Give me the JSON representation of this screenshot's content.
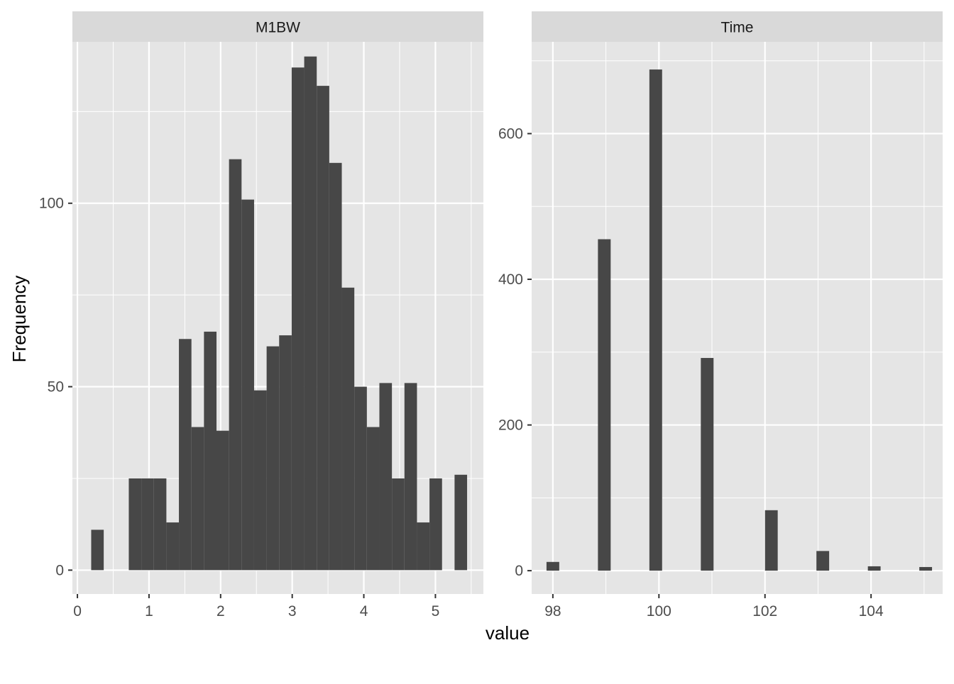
{
  "chart_data": {
    "type": "bar",
    "ylabel": "Frequency",
    "xlabel": "value",
    "colors": {
      "bar": "#474747",
      "panel_bg": "#e5e5e5",
      "strip_bg": "#d9d9d9",
      "grid": "#ffffff",
      "text": "#4d4d4d"
    },
    "grid": true,
    "panels": [
      {
        "strip": "M1BW",
        "xlim": [
          -0.07,
          5.67
        ],
        "ylim": [
          -6.5,
          144
        ],
        "xticks": [
          0,
          1,
          2,
          3,
          4,
          5
        ],
        "xtick_labels": [
          "0",
          "1",
          "2",
          "3",
          "4",
          "5"
        ],
        "yticks": [
          0,
          50,
          100
        ],
        "ytick_labels": [
          "0",
          "50",
          "100"
        ],
        "bin_width": 0.175,
        "bins": [
          {
            "x": 0.28,
            "count": 11
          },
          {
            "x": 0.455,
            "count": 0
          },
          {
            "x": 0.63,
            "count": 0
          },
          {
            "x": 0.805,
            "count": 25
          },
          {
            "x": 0.98,
            "count": 25
          },
          {
            "x": 1.155,
            "count": 25
          },
          {
            "x": 1.33,
            "count": 13
          },
          {
            "x": 1.505,
            "count": 63
          },
          {
            "x": 1.68,
            "count": 39
          },
          {
            "x": 1.855,
            "count": 65
          },
          {
            "x": 2.03,
            "count": 38
          },
          {
            "x": 2.205,
            "count": 112
          },
          {
            "x": 2.38,
            "count": 101
          },
          {
            "x": 2.555,
            "count": 49
          },
          {
            "x": 2.73,
            "count": 61
          },
          {
            "x": 2.905,
            "count": 64
          },
          {
            "x": 3.08,
            "count": 137
          },
          {
            "x": 3.255,
            "count": 140
          },
          {
            "x": 3.43,
            "count": 132
          },
          {
            "x": 3.605,
            "count": 111
          },
          {
            "x": 3.78,
            "count": 77
          },
          {
            "x": 3.955,
            "count": 50
          },
          {
            "x": 4.13,
            "count": 39
          },
          {
            "x": 4.305,
            "count": 51
          },
          {
            "x": 4.48,
            "count": 25
          },
          {
            "x": 4.655,
            "count": 51
          },
          {
            "x": 4.83,
            "count": 13
          },
          {
            "x": 5.005,
            "count": 25
          },
          {
            "x": 5.18,
            "count": 0
          },
          {
            "x": 5.355,
            "count": 26
          }
        ]
      },
      {
        "strip": "Time",
        "xlim": [
          97.6,
          105.35
        ],
        "ylim": [
          -32,
          726
        ],
        "xticks": [
          98,
          100,
          102,
          104
        ],
        "xtick_labels": [
          "98",
          "100",
          "102",
          "104"
        ],
        "yticks": [
          0,
          200,
          400,
          600
        ],
        "ytick_labels": [
          "0",
          "200",
          "400",
          "600"
        ],
        "bin_width": 0.24,
        "bins": [
          {
            "x": 98.0,
            "count": 12
          },
          {
            "x": 98.97,
            "count": 455
          },
          {
            "x": 99.94,
            "count": 688
          },
          {
            "x": 100.91,
            "count": 292
          },
          {
            "x": 102.12,
            "count": 83
          },
          {
            "x": 103.09,
            "count": 27
          },
          {
            "x": 104.06,
            "count": 6
          },
          {
            "x": 105.03,
            "count": 5
          }
        ]
      }
    ]
  }
}
